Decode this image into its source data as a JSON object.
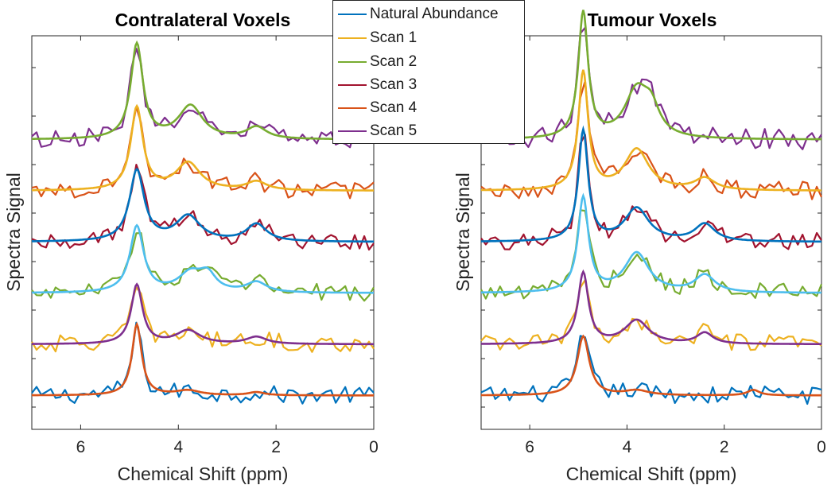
{
  "chart_data": [
    {
      "type": "line",
      "title": "Contralateral Voxels",
      "xlabel": "Chemical Shift (ppm)",
      "ylabel": "Spectra Signal",
      "xlim": [
        7,
        0
      ],
      "x_reversed": true,
      "xticks": [
        "6",
        "4",
        "2",
        "0"
      ],
      "y_ticks_labelled": false,
      "series": [
        {
          "name": "Natural Abundance",
          "color": "#0072BD",
          "offset": 0,
          "baseline": 0.3,
          "peaks": [
            [
              4.85,
              9.0,
              0.12
            ],
            [
              3.8,
              0.6,
              0.3
            ],
            [
              2.4,
              0.4,
              0.2
            ]
          ],
          "noise": 1.1,
          "fit_color": "#D95319"
        },
        {
          "name": "Scan 1",
          "color": "#EDB120",
          "offset": 6.5,
          "baseline": 0.3,
          "peaks": [
            [
              4.85,
              7.5,
              0.14
            ],
            [
              3.8,
              1.7,
              0.3
            ],
            [
              2.4,
              0.9,
              0.25
            ]
          ],
          "noise": 1.1,
          "fit_color": "#7E2F8E"
        },
        {
          "name": "Scan 2",
          "color": "#77AC30",
          "offset": 13.0,
          "baseline": 0.3,
          "peaks": [
            [
              4.85,
              8.4,
              0.17
            ],
            [
              3.75,
              2.4,
              0.3
            ],
            [
              3.4,
              2.0,
              0.2
            ],
            [
              2.4,
              1.3,
              0.25
            ]
          ],
          "noise": 1.1,
          "fit_color": "#4DBEEE"
        },
        {
          "name": "Scan 3",
          "color": "#A2142F",
          "offset": 19.5,
          "baseline": 0.3,
          "peaks": [
            [
              4.85,
              9.0,
              0.18
            ],
            [
              3.8,
              3.2,
              0.3
            ],
            [
              2.4,
              2.2,
              0.25
            ]
          ],
          "noise": 1.1,
          "fit_color": "#0072BD"
        },
        {
          "name": "Scan 4",
          "color": "#D95319",
          "offset": 26.0,
          "baseline": 0.3,
          "peaks": [
            [
              4.85,
              10.5,
              0.15
            ],
            [
              3.8,
              3.5,
              0.3
            ],
            [
              2.4,
              1.1,
              0.25
            ]
          ],
          "noise": 1.1,
          "fit_color": "#EDB120"
        },
        {
          "name": "Scan 5",
          "color": "#7E2F8E",
          "offset": 32.5,
          "baseline": 0.3,
          "peaks": [
            [
              4.85,
              12.0,
              0.15
            ],
            [
              3.75,
              4.2,
              0.3
            ],
            [
              2.4,
              1.5,
              0.25
            ]
          ],
          "noise": 1.1,
          "fit_color": "#77AC30"
        }
      ]
    },
    {
      "type": "line",
      "title": "Tumour Voxels",
      "xlabel": "Chemical Shift (ppm)",
      "ylabel": "Spectra Signal",
      "xlim": [
        7,
        0
      ],
      "x_reversed": true,
      "xticks": [
        "6",
        "4",
        "2",
        "0"
      ],
      "y_ticks_labelled": false,
      "series": [
        {
          "name": "Natural Abundance",
          "color": "#0072BD",
          "offset": 0,
          "baseline": 0.3,
          "peaks": [
            [
              4.9,
              7.5,
              0.15
            ],
            [
              3.8,
              0.6,
              0.3
            ],
            [
              1.4,
              0.7,
              0.15
            ]
          ],
          "noise": 1.1,
          "fit_color": "#D95319"
        },
        {
          "name": "Scan 1",
          "color": "#EDB120",
          "offset": 6.5,
          "baseline": 0.3,
          "peaks": [
            [
              4.9,
              9.0,
              0.13
            ],
            [
              3.8,
              3.0,
              0.3
            ],
            [
              2.4,
              1.4,
              0.2
            ]
          ],
          "noise": 1.1,
          "fit_color": "#7E2F8E"
        },
        {
          "name": "Scan 2",
          "color": "#77AC30",
          "offset": 13.0,
          "baseline": 0.3,
          "peaks": [
            [
              4.9,
              12.0,
              0.13
            ],
            [
              3.8,
              5.0,
              0.3
            ],
            [
              2.4,
              2.2,
              0.25
            ]
          ],
          "noise": 1.1,
          "fit_color": "#4DBEEE"
        },
        {
          "name": "Scan 3",
          "color": "#A2142F",
          "offset": 19.5,
          "baseline": 0.3,
          "peaks": [
            [
              4.9,
              14.0,
              0.12
            ],
            [
              3.8,
              4.2,
              0.3
            ],
            [
              2.4,
              2.2,
              0.25
            ]
          ],
          "noise": 1.1,
          "fit_color": "#0072BD"
        },
        {
          "name": "Scan 4",
          "color": "#D95319",
          "offset": 26.0,
          "baseline": 0.3,
          "peaks": [
            [
              4.9,
              15.0,
              0.12
            ],
            [
              3.8,
              5.2,
              0.3
            ],
            [
              2.4,
              1.5,
              0.25
            ]
          ],
          "noise": 1.2,
          "fit_color": "#EDB120"
        },
        {
          "name": "Scan 5",
          "color": "#7E2F8E",
          "offset": 32.5,
          "baseline": 0.3,
          "peaks": [
            [
              4.9,
              16.0,
              0.12
            ],
            [
              3.8,
              6.0,
              0.3
            ],
            [
              3.5,
              3.0,
              0.2
            ]
          ],
          "noise": 1.3,
          "fit_color": "#77AC30"
        }
      ]
    }
  ],
  "legend": {
    "placement": "top-center",
    "items": [
      {
        "label": "Natural Abundance",
        "color": "#0072BD"
      },
      {
        "label": "Scan 1",
        "color": "#EDB120"
      },
      {
        "label": "Scan 2",
        "color": "#77AC30"
      },
      {
        "label": "Scan 3",
        "color": "#A2142F"
      },
      {
        "label": "Scan 4",
        "color": "#D95319"
      },
      {
        "label": "Scan 5",
        "color": "#7E2F8E"
      }
    ]
  }
}
